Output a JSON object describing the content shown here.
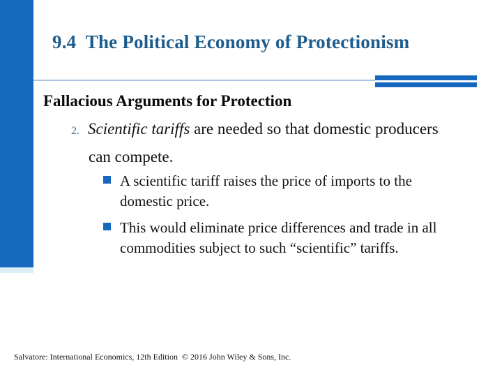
{
  "slide": {
    "title": "9.4  The Political Economy of Protectionism",
    "heading": "Fallacious Arguments for Protection",
    "numbered_item": {
      "number": "2.",
      "emphasis": "Scientific tariffs",
      "text": " are needed so that domestic producers can compete."
    },
    "bullets": [
      "A scientific tariff raises the price of imports to the domestic price.",
      "This would eliminate price differences and trade in all commodities subject to such “scientific” tariffs."
    ],
    "footer": "Salvatore: International Economics, 12th Edition  © 2016 John Wiley & Sons, Inc.",
    "colors": {
      "accent_blue": "#1668BE",
      "title_blue": "#1D5C8C",
      "number_slate": "#4A708F",
      "divider_light_blue": "#A9C7E1",
      "bar_bottom_strip": "#D9EEF5"
    },
    "bullet_icon": "square-bullet"
  }
}
